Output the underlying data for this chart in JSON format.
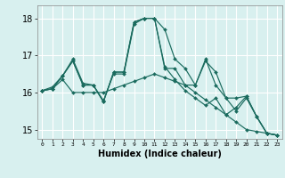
{
  "xlabel": "Humidex (Indice chaleur)",
  "ylabel": "",
  "bg_color": "#d8f0ef",
  "grid_color": "#ffffff",
  "line_color": "#1a6b5e",
  "xlim": [
    -0.5,
    23.5
  ],
  "ylim": [
    14.75,
    18.35
  ],
  "yticks": [
    15,
    16,
    17,
    18
  ],
  "xtick_labels": [
    "0",
    "1",
    "2",
    "3",
    "4",
    "5",
    "6",
    "7",
    "8",
    "9",
    "10",
    "11",
    "12",
    "13",
    "14",
    "15",
    "16",
    "17",
    "18",
    "19",
    "20",
    "21",
    "22",
    "23"
  ],
  "series": [
    [
      16.05,
      16.1,
      16.45,
      16.85,
      16.2,
      16.2,
      15.75,
      16.55,
      16.55,
      17.9,
      18.0,
      18.0,
      17.7,
      16.9,
      16.65,
      16.2,
      16.9,
      16.2,
      15.85,
      15.85,
      15.9,
      15.35,
      14.9,
      14.85
    ],
    [
      16.05,
      16.15,
      16.45,
      16.9,
      16.25,
      16.2,
      15.78,
      16.5,
      16.5,
      17.85,
      18.0,
      18.0,
      16.65,
      16.65,
      16.2,
      16.2,
      16.85,
      16.55,
      15.85,
      15.5,
      15.85,
      15.35,
      14.9,
      14.85
    ],
    [
      16.05,
      16.1,
      16.45,
      16.85,
      16.2,
      16.2,
      15.75,
      16.55,
      16.55,
      17.9,
      18.0,
      18.0,
      16.7,
      16.35,
      16.05,
      15.85,
      15.65,
      15.85,
      15.4,
      15.6,
      15.9,
      15.35,
      14.9,
      14.85
    ],
    [
      16.05,
      16.1,
      16.35,
      16.0,
      16.0,
      16.0,
      16.0,
      16.1,
      16.2,
      16.3,
      16.4,
      16.5,
      16.4,
      16.3,
      16.2,
      16.0,
      15.8,
      15.6,
      15.4,
      15.2,
      15.0,
      14.95,
      14.9,
      14.85
    ]
  ]
}
